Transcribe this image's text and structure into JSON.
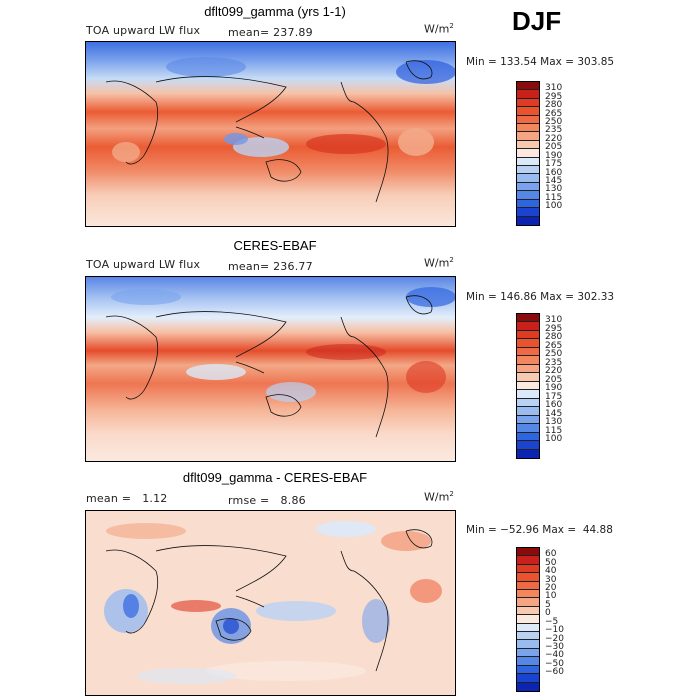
{
  "season": "DJF",
  "panels": [
    {
      "title": "dflt099_gamma (yrs 1-1)",
      "left_label": "TOA upward LW flux",
      "stat_label": "mean= 237.89",
      "units": "W/m",
      "units_sup": "2",
      "minmax": "Min = 133.54 Max = 303.85",
      "colorbar": {
        "labels": [
          "310",
          "295",
          "280",
          "265",
          "250",
          "235",
          "220",
          "205",
          "190",
          "175",
          "160",
          "145",
          "130",
          "115",
          "100"
        ],
        "colors": [
          "#8b0a0a",
          "#c8201a",
          "#dd3b24",
          "#e9532e",
          "#ef6a44",
          "#f2875e",
          "#f5a584",
          "#f7c9b0",
          "#fbe9df",
          "#dbe9f8",
          "#b9d2f4",
          "#99bbf0",
          "#79a3ec",
          "#5487e6",
          "#2f65e0",
          "#1a44d0",
          "#0b24b4"
        ]
      }
    },
    {
      "title": "CERES-EBAF",
      "left_label": "TOA upward LW flux",
      "stat_label": "mean= 236.77",
      "units": "W/m",
      "units_sup": "2",
      "minmax": "Min = 146.86 Max = 302.33",
      "colorbar": {
        "labels": [
          "310",
          "295",
          "280",
          "265",
          "250",
          "235",
          "220",
          "205",
          "190",
          "175",
          "160",
          "145",
          "130",
          "115",
          "100"
        ],
        "colors": [
          "#8b0a0a",
          "#c8201a",
          "#dd3b24",
          "#e9532e",
          "#ef6a44",
          "#f2875e",
          "#f5a584",
          "#f7c9b0",
          "#fbe9df",
          "#dbe9f8",
          "#b9d2f4",
          "#99bbf0",
          "#79a3ec",
          "#5487e6",
          "#2f65e0",
          "#1a44d0",
          "#0b24b4"
        ]
      }
    },
    {
      "title": "dflt099_gamma - CERES-EBAF",
      "left_label": "mean =   1.12",
      "stat_label": "rmse =   8.86",
      "units": "W/m",
      "units_sup": "2",
      "minmax": "Min = −52.96 Max =  44.88",
      "colorbar": {
        "labels": [
          "60",
          "50",
          "40",
          "30",
          "20",
          "10",
          "5",
          "0",
          "−5",
          "−10",
          "−20",
          "−30",
          "−40",
          "−50",
          "−60"
        ],
        "colors": [
          "#8b0a0a",
          "#c8201a",
          "#dd3b24",
          "#e9532e",
          "#ef6a44",
          "#f2875e",
          "#f5a584",
          "#f7c9b0",
          "#fbe9df",
          "#dbe9f8",
          "#b9d2f4",
          "#99bbf0",
          "#79a3ec",
          "#5487e6",
          "#2f65e0",
          "#1a44d0",
          "#0b24b4"
        ]
      }
    }
  ]
}
